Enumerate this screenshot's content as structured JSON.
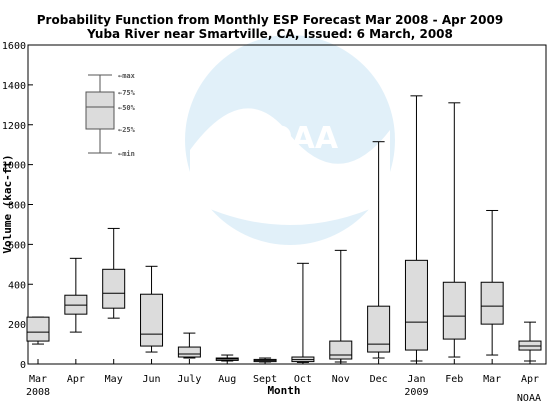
{
  "chart_data": {
    "type": "boxplot",
    "title": "Probability Function from Monthly ESP Forecast Mar 2008 - Apr 2009",
    "subtitle": "Yuba River near Smartville, CA, Issued: 6 March, 2008",
    "xlabel": "Month",
    "ylabel": "Volume (kac-ft)",
    "ylim": [
      0,
      1600
    ],
    "yticks": [
      0,
      200,
      400,
      600,
      800,
      1000,
      1200,
      1400,
      1600
    ],
    "grid": false,
    "categories": [
      "Mar",
      "Apr",
      "May",
      "Jun",
      "July",
      "Aug",
      "Sept",
      "Oct",
      "Nov",
      "Dec",
      "Jan",
      "Feb",
      "Mar",
      "Apr"
    ],
    "year_labels": [
      {
        "index": 0,
        "text": "2008"
      },
      {
        "index": 10,
        "text": "2009"
      }
    ],
    "boxes": [
      {
        "min": 100,
        "q25": 115,
        "median": 160,
        "q75": 235,
        "max": 235
      },
      {
        "min": 160,
        "q25": 250,
        "median": 295,
        "q75": 345,
        "max": 530
      },
      {
        "min": 230,
        "q25": 280,
        "median": 355,
        "q75": 475,
        "max": 680
      },
      {
        "min": 60,
        "q25": 90,
        "median": 150,
        "q75": 350,
        "max": 490
      },
      {
        "min": 30,
        "q25": 35,
        "median": 50,
        "q75": 85,
        "max": 155
      },
      {
        "min": 15,
        "q25": 18,
        "median": 25,
        "q75": 30,
        "max": 45
      },
      {
        "min": 10,
        "q25": 12,
        "median": 18,
        "q75": 23,
        "max": 30
      },
      {
        "min": 8,
        "q25": 12,
        "median": 22,
        "q75": 35,
        "max": 505
      },
      {
        "min": 10,
        "q25": 25,
        "median": 45,
        "q75": 115,
        "max": 570
      },
      {
        "min": 30,
        "q25": 60,
        "median": 100,
        "q75": 290,
        "max": 1115
      },
      {
        "min": 15,
        "q25": 70,
        "median": 210,
        "q75": 520,
        "max": 1345
      },
      {
        "min": 35,
        "q25": 125,
        "median": 240,
        "q75": 410,
        "max": 1310
      },
      {
        "min": 45,
        "q25": 200,
        "median": 290,
        "q75": 410,
        "max": 770
      },
      {
        "min": 15,
        "q25": 70,
        "median": 90,
        "q75": 115,
        "max": 210
      }
    ],
    "legend": {
      "placement": "top-left",
      "labels": [
        "max",
        "75%",
        "50%",
        "25%",
        "min"
      ]
    },
    "credit": "NOAA"
  }
}
